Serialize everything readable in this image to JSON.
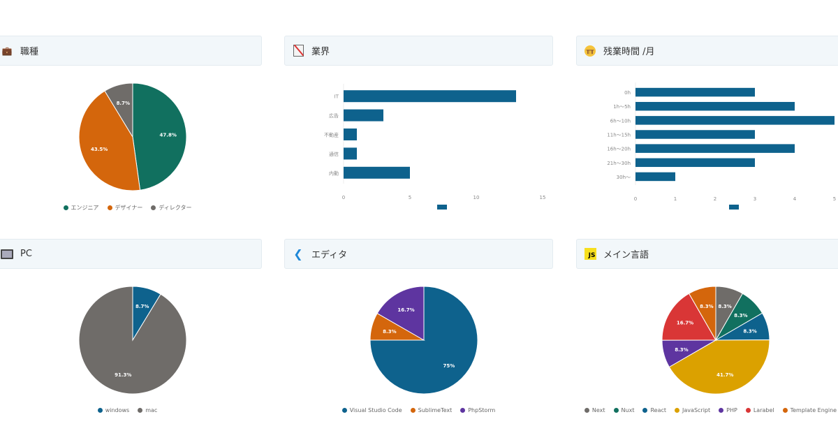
{
  "panels": [
    {
      "title": "職種",
      "icon": "job-search-icon",
      "type": "pie",
      "labels": [
        "エンジニア",
        "デザイナー",
        "ディレクター"
      ],
      "values": [
        47.8,
        43.5,
        8.7
      ],
      "display": [
        "47.8%",
        "43.5%",
        "8.7%"
      ],
      "colors": [
        "#11705f",
        "#d4660c",
        "#6f6c69"
      ]
    },
    {
      "title": "業界",
      "icon": "memo-icon",
      "type": "bar",
      "labels": [
        "IT",
        "広告",
        "不動産",
        "通信",
        "内勤"
      ],
      "values": [
        13,
        3,
        1,
        1,
        5
      ],
      "ticks": [
        "0",
        "5",
        "10",
        "15"
      ],
      "max": 15,
      "color": "#0e628d"
    },
    {
      "title": "残業時間 /月",
      "icon": "crying-face-icon",
      "type": "bar",
      "labels": [
        "0h",
        "1h〜5h",
        "6h〜10h",
        "11h〜15h",
        "16h〜20h",
        "21h〜30h",
        "30h〜"
      ],
      "values": [
        3,
        4,
        5,
        3,
        4,
        3,
        1
      ],
      "ticks": [
        "0",
        "1",
        "2",
        "3",
        "4",
        "5"
      ],
      "max": 5,
      "color": "#0e628d"
    },
    {
      "title": "PC",
      "icon": "desktop-computer-icon",
      "type": "pie",
      "labels": [
        "windows",
        "mac"
      ],
      "values": [
        8.7,
        91.3
      ],
      "display": [
        "8.7%",
        "91.3%"
      ],
      "colors": [
        "#0e628d",
        "#6f6c69"
      ]
    },
    {
      "title": "エディタ",
      "icon": "vscode-icon",
      "type": "pie",
      "labels": [
        "Visual Studio Code",
        "SublimeText",
        "PhpStorm"
      ],
      "values": [
        75,
        8.3,
        16.7
      ],
      "display": [
        "75%",
        "8.3%",
        "16.7%"
      ],
      "colors": [
        "#0e628d",
        "#d4660c",
        "#5e35a0"
      ]
    },
    {
      "title": "メイン言語",
      "icon": "javascript-icon",
      "icon_text": "JS",
      "type": "pie",
      "labels": [
        "Next",
        "Nuxt",
        "React",
        "JavaScript",
        "PHP",
        "Larabel",
        "Template Engine"
      ],
      "values": [
        8.3,
        8.3,
        8.3,
        41.7,
        8.3,
        16.7,
        8.3
      ],
      "display": [
        "8.3%",
        "8.3%",
        "8.3%",
        "41.7%",
        "8.3%",
        "16.7%",
        "8.3%"
      ],
      "colors": [
        "#6f6c69",
        "#11705f",
        "#0e628d",
        "#dba100",
        "#5e35a0",
        "#d93636",
        "#d4660c"
      ]
    }
  ]
}
